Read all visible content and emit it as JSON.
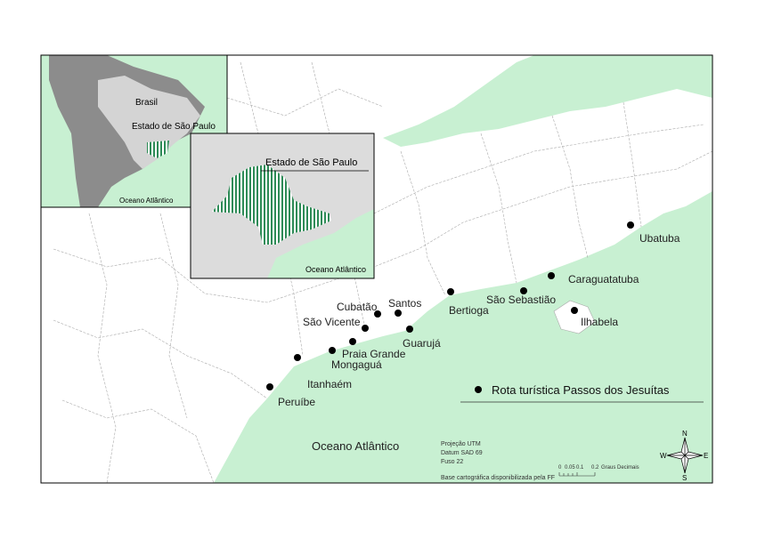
{
  "inset_brazil": {
    "labels": [
      "Brasil",
      "Estado de São Paulo",
      "Oceano Atlântico"
    ]
  },
  "inset_state": {
    "title": "Estado de São Paulo",
    "ocean": "Oceano Atlântico"
  },
  "cities": [
    "Ubatuba",
    "Caraguatatuba",
    "Ilhabela",
    "São Sebastião",
    "Bertioga",
    "Santos",
    "Cubatão",
    "São Vicente",
    "Guarujá",
    "Praia Grande",
    "Mongaguá",
    "Itanhaém",
    "Peruíbe"
  ],
  "ocean_label": "Oceano Atlântico",
  "legend": "Rota turística Passos dos Jesuítas",
  "map_info": [
    "Projeção UTM",
    "Datum SAD 69",
    "Fuso 22"
  ],
  "source": "Base cartográfica disponibilizada pela FF",
  "scale": {
    "ticks": [
      "0",
      "0.05",
      "0.1",
      "0.2"
    ],
    "unit": "Graus Decimais"
  },
  "compass": {
    "n": "N",
    "s": "S",
    "e": "E",
    "w": "W"
  }
}
